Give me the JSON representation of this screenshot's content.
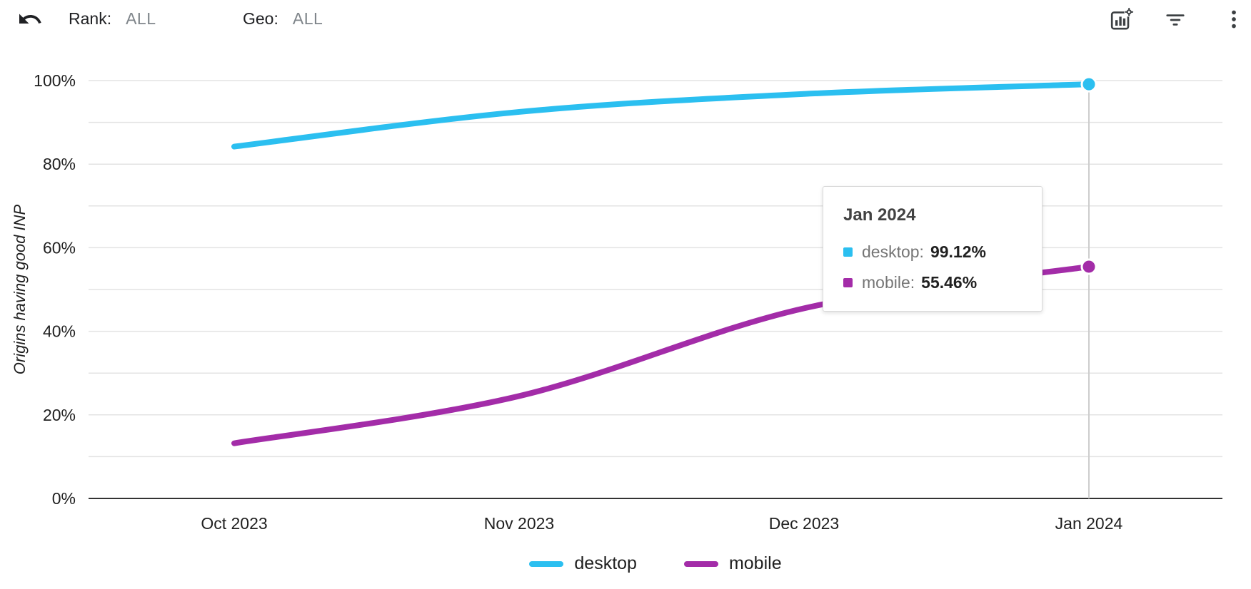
{
  "header": {
    "rank_label": "Rank:",
    "rank_value": "ALL",
    "geo_label": "Geo:",
    "geo_value": "ALL",
    "icons": [
      "undo-icon",
      "chart-settings-icon",
      "filter-icon",
      "more-vert-icon"
    ]
  },
  "chart_data": {
    "type": "line",
    "x": [
      "Oct 2023",
      "Nov 2023",
      "Dec 2023",
      "Jan 2024"
    ],
    "series": [
      {
        "name": "desktop",
        "color": "#2BBFF0",
        "values": [
          84.2,
          92.5,
          96.8,
          99.12
        ]
      },
      {
        "name": "mobile",
        "color": "#A32CA8",
        "values": [
          13.2,
          24.5,
          45.5,
          55.46
        ]
      }
    ],
    "title": "",
    "xlabel": "",
    "ylabel": "Origins having good INP",
    "ylim": [
      0,
      100
    ],
    "yticks": [
      0,
      20,
      40,
      60,
      80,
      100
    ],
    "ytick_labels": [
      "0%",
      "20%",
      "40%",
      "60%",
      "80%",
      "100%"
    ],
    "gridline_step_percent": 10,
    "grid": true,
    "legend_position": "bottom",
    "highlight_x": "Jan 2024"
  },
  "tooltip": {
    "title": "Jan 2024",
    "rows": [
      {
        "label": "desktop:",
        "value": "99.12%"
      },
      {
        "label": "mobile:",
        "value": "55.46%"
      }
    ]
  },
  "legend": {
    "items": [
      {
        "label": "desktop"
      },
      {
        "label": "mobile"
      }
    ]
  }
}
